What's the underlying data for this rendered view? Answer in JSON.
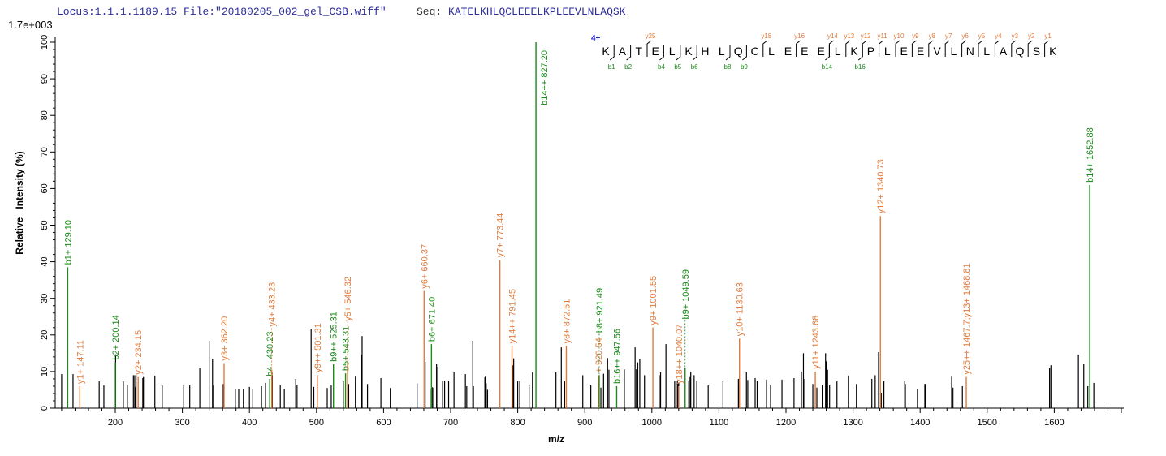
{
  "header": {
    "locus": "Locus:1.1.1.1189.15",
    "file": "File:\"20180205_002_gel_CSB.wiff\"",
    "seq_label": "Seq:",
    "seq": "KATELKHLQCLEEELKPLEEVLNLAQSK"
  },
  "chart_data": {
    "type": "bar",
    "title": "",
    "xlabel": "m/z",
    "ylabel": "Relative   Intensity (%)",
    "intensity_scale": "1.7e+003",
    "xlim": [
      110,
      1703
    ],
    "ylim": [
      0,
      100
    ],
    "xticks": [
      "200",
      "300",
      "400",
      "500",
      "600",
      "700",
      "800",
      "900",
      "1000",
      "1100",
      "1200",
      "1300",
      "1400",
      "1500",
      "1600"
    ],
    "yticks": [
      "0",
      "10",
      "20",
      "30",
      "40",
      "50",
      "60",
      "70",
      "80",
      "90",
      "100"
    ],
    "colors": {
      "b": "#1a8a1a",
      "y": "#e07b3c",
      "other": "#000000",
      "charge": "#1f1fcc"
    },
    "annotated_peaks": [
      {
        "mz": 129.1,
        "i": 38.5,
        "type": "b",
        "label": "b1+ 129.10"
      },
      {
        "mz": 147.11,
        "i": 6,
        "type": "y",
        "label": "y1+ 147.11"
      },
      {
        "mz": 200.14,
        "i": 12.5,
        "type": "b",
        "label": "b2+ 200.14"
      },
      {
        "mz": 234.15,
        "i": 8.5,
        "type": "y",
        "label": "y2+ 234.15"
      },
      {
        "mz": 362.2,
        "i": 12.3,
        "type": "y",
        "label": "y3+ 362.20"
      },
      {
        "mz": 430.23,
        "i": 8,
        "type": "b",
        "label": "b4+ 430.23"
      },
      {
        "mz": 433.23,
        "i": 10.5,
        "type": "y",
        "label": "y4+ 433.23"
      },
      {
        "mz": 501.31,
        "i": 9,
        "type": "y",
        "label": "y9++ 501.31"
      },
      {
        "mz": 525.31,
        "i": 12,
        "type": "b",
        "label": "b9++ 525.31"
      },
      {
        "mz": 543.31,
        "i": 9.5,
        "type": "b",
        "label": "b5+ 543.31"
      },
      {
        "mz": 546.32,
        "i": 12.5,
        "type": "y",
        "label": "y5+ 546.32"
      },
      {
        "mz": 660.37,
        "i": 32,
        "type": "y",
        "label": "y6+ 660.37"
      },
      {
        "mz": 671.4,
        "i": 17.5,
        "type": "b",
        "label": "b6+ 671.40"
      },
      {
        "mz": 773.44,
        "i": 40.5,
        "type": "y",
        "label": "y7+ 773.44"
      },
      {
        "mz": 791.45,
        "i": 17,
        "type": "y",
        "label": "y14++ 791.45"
      },
      {
        "mz": 827.2,
        "i": 100,
        "type": "b",
        "label": "b14++ 827.20"
      },
      {
        "mz": 872.51,
        "i": 17,
        "type": "y",
        "label": "y8+ 872.51"
      },
      {
        "mz": 920.54,
        "i": 9,
        "type": "y",
        "label": "+ 920.54"
      },
      {
        "mz": 921.49,
        "i": 9,
        "type": "b",
        "label": "b8+ 921.49"
      },
      {
        "mz": 947.56,
        "i": 6,
        "type": "b",
        "label": "b16++ 947.56"
      },
      {
        "mz": 1001.55,
        "i": 22,
        "type": "y",
        "label": "y9+ 1001.55"
      },
      {
        "mz": 1040.07,
        "i": 6,
        "type": "y",
        "label": "y18++ 1040.07"
      },
      {
        "mz": 1049.59,
        "i": 11,
        "type": "b",
        "label": "b9+ 1049.59"
      },
      {
        "mz": 1130.63,
        "i": 19,
        "type": "y",
        "label": "y10+ 1130.63"
      },
      {
        "mz": 1243.68,
        "i": 10,
        "type": "y",
        "label": "y11+ 1243.68"
      },
      {
        "mz": 1340.73,
        "i": 52.5,
        "type": "y",
        "label": "y12+ 1340.73"
      },
      {
        "mz": 1468.81,
        "i": 8.5,
        "type": "y",
        "label": "y25++ 1467.7;y13+ 1468.81"
      },
      {
        "mz": 1652.88,
        "i": 61,
        "type": "b",
        "label": "b14+ 1652.88"
      }
    ],
    "other_peaks": [
      [
        120,
        9.3
      ],
      [
        137,
        9.3
      ],
      [
        176,
        7.3
      ],
      [
        183,
        6.2
      ],
      [
        200.5,
        14.7
      ],
      [
        212,
        7.3
      ],
      [
        218,
        6.2
      ],
      [
        227,
        9
      ],
      [
        229,
        9
      ],
      [
        230,
        5.8
      ],
      [
        231,
        9
      ],
      [
        241,
        8.2
      ],
      [
        242,
        8.5
      ],
      [
        259,
        8.9
      ],
      [
        270,
        6.2
      ],
      [
        302,
        6.2
      ],
      [
        311,
        6.2
      ],
      [
        326,
        10.9
      ],
      [
        340,
        18.4
      ],
      [
        345,
        13.5
      ],
      [
        345.5,
        6.2
      ],
      [
        361,
        6.6
      ],
      [
        379,
        5.1
      ],
      [
        384,
        5.1
      ],
      [
        391,
        5.1
      ],
      [
        400,
        5.8
      ],
      [
        405,
        5.3
      ],
      [
        418,
        6
      ],
      [
        424,
        6.9
      ],
      [
        434,
        9
      ],
      [
        446,
        6.2
      ],
      [
        452,
        5.1
      ],
      [
        469,
        8
      ],
      [
        471,
        6.2
      ],
      [
        492,
        21.7
      ],
      [
        496,
        5.8
      ],
      [
        516,
        5.5
      ],
      [
        522,
        6.2
      ],
      [
        540,
        7.3
      ],
      [
        548,
        6.6
      ],
      [
        558,
        8.6
      ],
      [
        567,
        14.6
      ],
      [
        568,
        19.7
      ],
      [
        576,
        6.6
      ],
      [
        596,
        8.2
      ],
      [
        610,
        5.5
      ],
      [
        650,
        6.8
      ],
      [
        662,
        12.6
      ],
      [
        671,
        5
      ],
      [
        673,
        5.7
      ],
      [
        675,
        5.5
      ],
      [
        679,
        12
      ],
      [
        681,
        11.3
      ],
      [
        688,
        7.3
      ],
      [
        691,
        7.5
      ],
      [
        697,
        7.5
      ],
      [
        705,
        9.8
      ],
      [
        722,
        9.3
      ],
      [
        724,
        6
      ],
      [
        733,
        18.4
      ],
      [
        734,
        6
      ],
      [
        751,
        8.4
      ],
      [
        752,
        8.8
      ],
      [
        753,
        6.8
      ],
      [
        755,
        5
      ],
      [
        793,
        11.7
      ],
      [
        794,
        13.6
      ],
      [
        800,
        7.3
      ],
      [
        803,
        7.5
      ],
      [
        817,
        6.2
      ],
      [
        822,
        9.8
      ],
      [
        857,
        9.8
      ],
      [
        865,
        16.6
      ],
      [
        870,
        7.3
      ],
      [
        897,
        9
      ],
      [
        909,
        6.2
      ],
      [
        924,
        5.6
      ],
      [
        928,
        9.4
      ],
      [
        934,
        13.7
      ],
      [
        936,
        10.5
      ],
      [
        959,
        10.6
      ],
      [
        975,
        16.6
      ],
      [
        977,
        10.6
      ],
      [
        979,
        12.5
      ],
      [
        982,
        13.3
      ],
      [
        989,
        9
      ],
      [
        1011,
        9
      ],
      [
        1013,
        9.8
      ],
      [
        1021,
        17.5
      ],
      [
        1034,
        7.5
      ],
      [
        1038,
        7.5
      ],
      [
        1039,
        6.6
      ],
      [
        1040,
        6.9
      ],
      [
        1055,
        7.3
      ],
      [
        1057,
        8.5
      ],
      [
        1058,
        10
      ],
      [
        1063,
        9
      ],
      [
        1067,
        7.5
      ],
      [
        1084,
        6.2
      ],
      [
        1106,
        7.3
      ],
      [
        1129,
        8
      ],
      [
        1130,
        6.2
      ],
      [
        1141,
        9.8
      ],
      [
        1143,
        7.7
      ],
      [
        1154,
        8.2
      ],
      [
        1157,
        7.5
      ],
      [
        1171,
        7.8
      ],
      [
        1177,
        6.2
      ],
      [
        1194,
        7.8
      ],
      [
        1212,
        8.2
      ],
      [
        1223,
        10
      ],
      [
        1226,
        15
      ],
      [
        1228,
        8
      ],
      [
        1240,
        6.6
      ],
      [
        1246,
        5.6
      ],
      [
        1254,
        6.2
      ],
      [
        1259,
        15
      ],
      [
        1260,
        12.8
      ],
      [
        1262,
        10.5
      ],
      [
        1265,
        6.2
      ],
      [
        1276,
        7.3
      ],
      [
        1293,
        8.9
      ],
      [
        1305,
        6.6
      ],
      [
        1328,
        8
      ],
      [
        1333,
        9
      ],
      [
        1338,
        15.3
      ],
      [
        1342,
        4.2
      ],
      [
        1346,
        7.3
      ],
      [
        1377,
        7.3
      ],
      [
        1378,
        6.6
      ],
      [
        1396,
        5.1
      ],
      [
        1407,
        6.6
      ],
      [
        1408,
        6.6
      ],
      [
        1447,
        8.6
      ],
      [
        1449,
        5.6
      ],
      [
        1463,
        6
      ],
      [
        1593,
        10.9
      ],
      [
        1595,
        11.7
      ],
      [
        1636,
        14.6
      ],
      [
        1644,
        12.2
      ],
      [
        1650,
        6
      ],
      [
        1659,
        6.9
      ]
    ],
    "sequence_map": {
      "charge": "4+",
      "residues": [
        "K",
        "A",
        "T",
        "E",
        "L",
        "K",
        "H",
        "L",
        "Q",
        "C",
        "L",
        "E",
        "E",
        "E",
        "L",
        "K",
        "P",
        "L",
        "E",
        "E",
        "V",
        "L",
        "N",
        "L",
        "A",
        "Q",
        "S",
        "K"
      ],
      "b_ions": [
        1,
        2,
        4,
        5,
        6,
        8,
        9,
        14,
        16
      ],
      "y_ions": [
        1,
        2,
        3,
        4,
        5,
        6,
        7,
        8,
        9,
        10,
        11,
        12,
        13,
        14,
        16,
        18,
        25
      ]
    }
  }
}
